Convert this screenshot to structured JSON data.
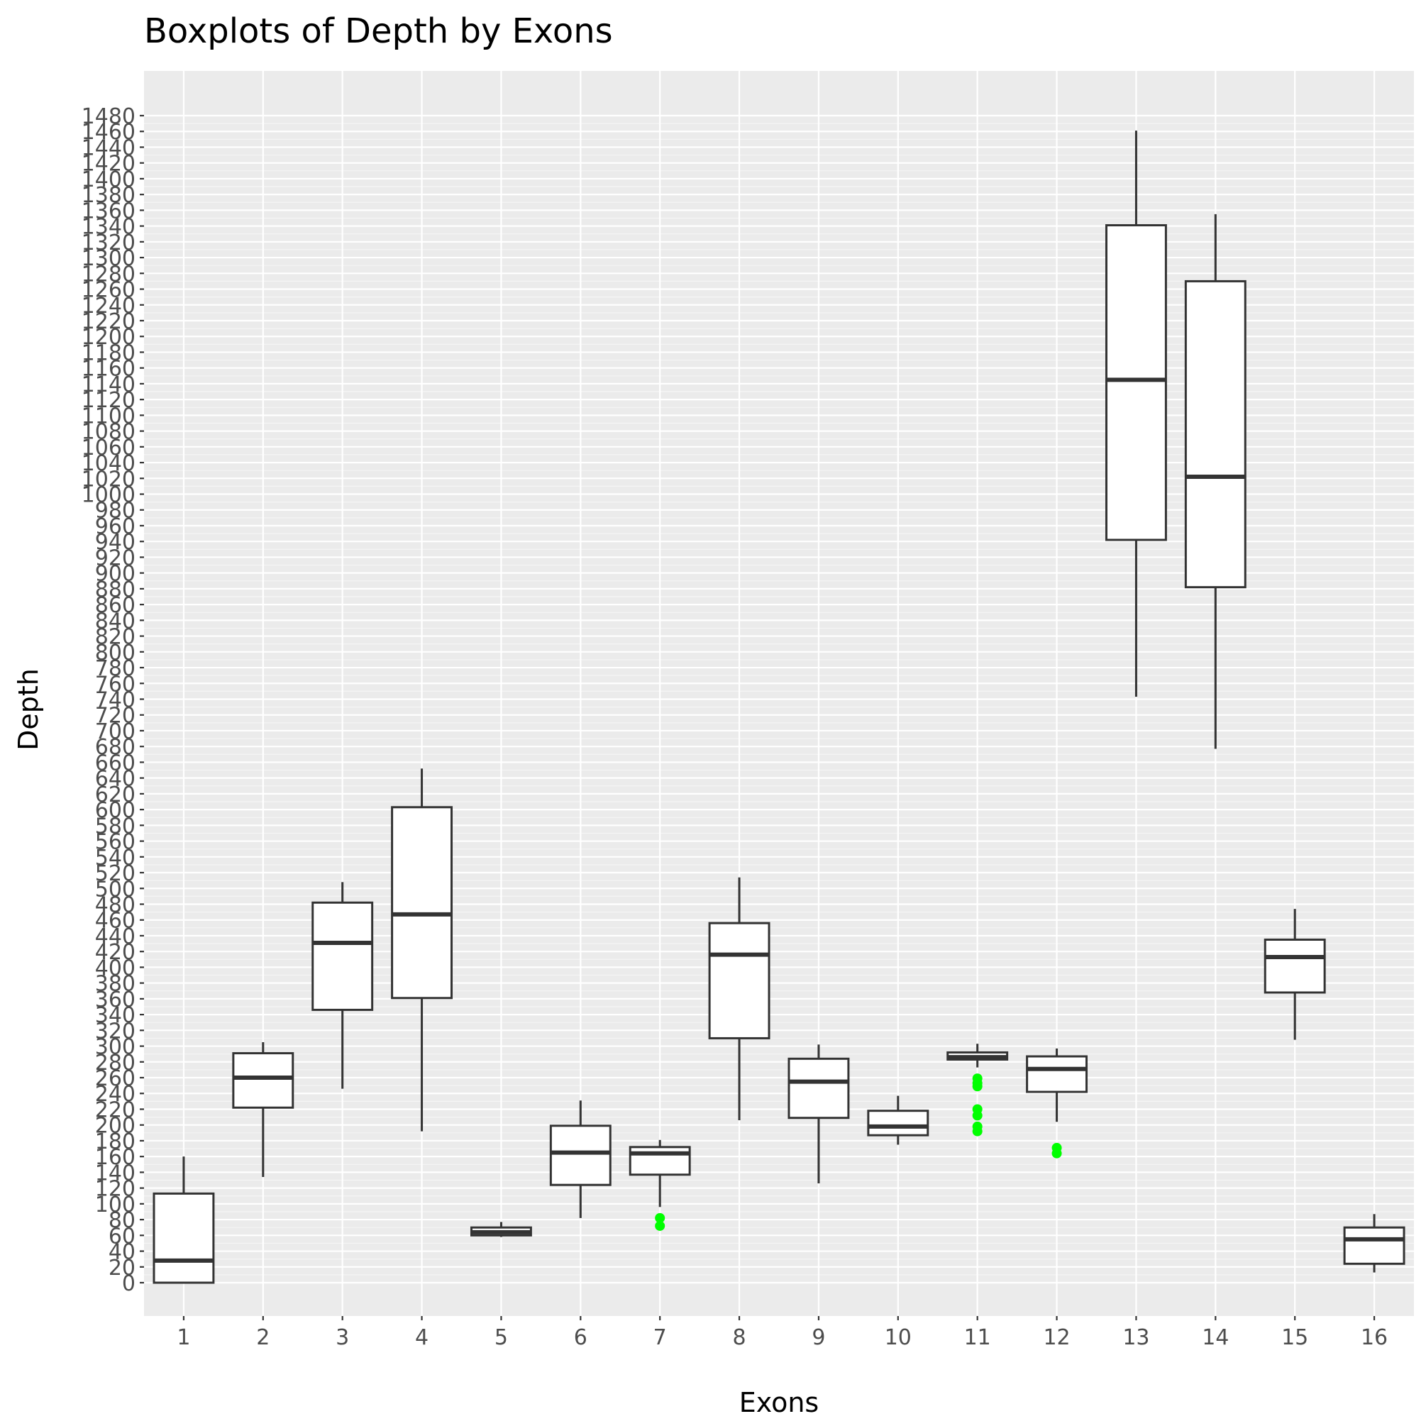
{
  "chart_data": {
    "type": "boxplot",
    "title": "Boxplots of Depth by Exons",
    "xlabel": "Exons",
    "ylabel": "Depth",
    "ylim": [
      -40,
      1530
    ],
    "y_ticks": [
      0,
      20,
      40,
      60,
      80,
      100,
      120,
      140,
      160,
      180,
      200,
      220,
      240,
      260,
      280,
      300,
      320,
      340,
      360,
      380,
      400,
      420,
      440,
      460,
      480,
      500,
      520,
      540,
      560,
      580,
      600,
      620,
      640,
      660,
      680,
      700,
      720,
      740,
      760,
      780,
      800,
      820,
      840,
      860,
      880,
      900,
      920,
      940,
      960,
      980,
      1000,
      1020,
      1040,
      1060,
      1080,
      1100,
      1120,
      1140,
      1160,
      1180,
      1200,
      1220,
      1240,
      1260,
      1280,
      1300,
      1320,
      1340,
      1360,
      1380,
      1400,
      1420,
      1440,
      1460,
      1480
    ],
    "grid": true,
    "background": "#ebebeb",
    "outlier_color": "#00ff00",
    "categories": [
      "1",
      "2",
      "3",
      "4",
      "5",
      "6",
      "7",
      "8",
      "9",
      "10",
      "11",
      "12",
      "13",
      "14",
      "15",
      "16"
    ],
    "boxes": [
      {
        "category": "1",
        "min": 0,
        "q1": 0,
        "median": 28,
        "q3": 113,
        "max": 160,
        "outliers": []
      },
      {
        "category": "2",
        "min": 134,
        "q1": 222,
        "median": 260,
        "q3": 291,
        "max": 305,
        "outliers": []
      },
      {
        "category": "3",
        "min": 246,
        "q1": 346,
        "median": 431,
        "q3": 482,
        "max": 508,
        "outliers": []
      },
      {
        "category": "4",
        "min": 192,
        "q1": 361,
        "median": 467,
        "q3": 603,
        "max": 652,
        "outliers": []
      },
      {
        "category": "5",
        "min": 58,
        "q1": 60,
        "median": 64,
        "q3": 70,
        "max": 77,
        "outliers": []
      },
      {
        "category": "6",
        "min": 82,
        "q1": 124,
        "median": 165,
        "q3": 199,
        "max": 231,
        "outliers": []
      },
      {
        "category": "7",
        "min": 96,
        "q1": 137,
        "median": 164,
        "q3": 172,
        "max": 181,
        "outliers": [
          72,
          82
        ]
      },
      {
        "category": "8",
        "min": 206,
        "q1": 310,
        "median": 416,
        "q3": 456,
        "max": 514,
        "outliers": []
      },
      {
        "category": "9",
        "min": 126,
        "q1": 209,
        "median": 255,
        "q3": 284,
        "max": 302,
        "outliers": []
      },
      {
        "category": "10",
        "min": 175,
        "q1": 187,
        "median": 198,
        "q3": 218,
        "max": 237,
        "outliers": []
      },
      {
        "category": "11",
        "min": 273,
        "q1": 283,
        "median": 286,
        "q3": 292,
        "max": 303,
        "outliers": [
          192,
          198,
          212,
          220,
          249,
          253,
          259
        ]
      },
      {
        "category": "12",
        "min": 204,
        "q1": 242,
        "median": 271,
        "q3": 287,
        "max": 297,
        "outliers": [
          164,
          171
        ]
      },
      {
        "category": "13",
        "min": 743,
        "q1": 942,
        "median": 1145,
        "q3": 1341,
        "max": 1461,
        "outliers": []
      },
      {
        "category": "14",
        "min": 677,
        "q1": 882,
        "median": 1022,
        "q3": 1270,
        "max": 1355,
        "outliers": []
      },
      {
        "category": "15",
        "min": 308,
        "q1": 368,
        "median": 413,
        "q3": 435,
        "max": 474,
        "outliers": []
      },
      {
        "category": "16",
        "min": 13,
        "q1": 24,
        "median": 55,
        "q3": 70,
        "max": 87,
        "outliers": []
      }
    ]
  }
}
